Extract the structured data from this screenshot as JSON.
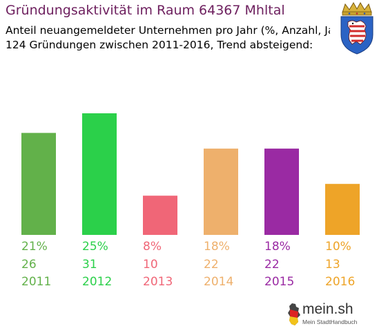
{
  "header": {
    "title": "Gründungsaktivität im Raum 64367 Mhltal",
    "subtitle_line1": "Anteil neuangemeldeter Unternehmen pro Jahr (%, Anzahl, Jahr)",
    "subtitle_line2": "124 Gründungen zwischen 2011-2016, Trend absteigend:"
  },
  "chart_data": {
    "type": "bar",
    "categories": [
      "2011",
      "2012",
      "2013",
      "2014",
      "2015",
      "2016"
    ],
    "series": [
      {
        "values": [
          26,
          31,
          10,
          22,
          22,
          13
        ]
      }
    ],
    "percent_labels": [
      "21%",
      "25%",
      "8%",
      "18%",
      "18%",
      "10%"
    ],
    "count_labels": [
      "26",
      "31",
      "10",
      "22",
      "22",
      "13"
    ],
    "colors": [
      "#62b14a",
      "#2bd04a",
      "#f06677",
      "#eeb06c",
      "#9a2aa3",
      "#eea428"
    ],
    "ylim": [
      0,
      31
    ],
    "grid": false,
    "legend": "none"
  },
  "branding": {
    "logo_text": "mein.sh",
    "logo_tagline": "Mein StadtHandbuch",
    "crest_icon": "hessen-coat-of-arms-icon"
  }
}
